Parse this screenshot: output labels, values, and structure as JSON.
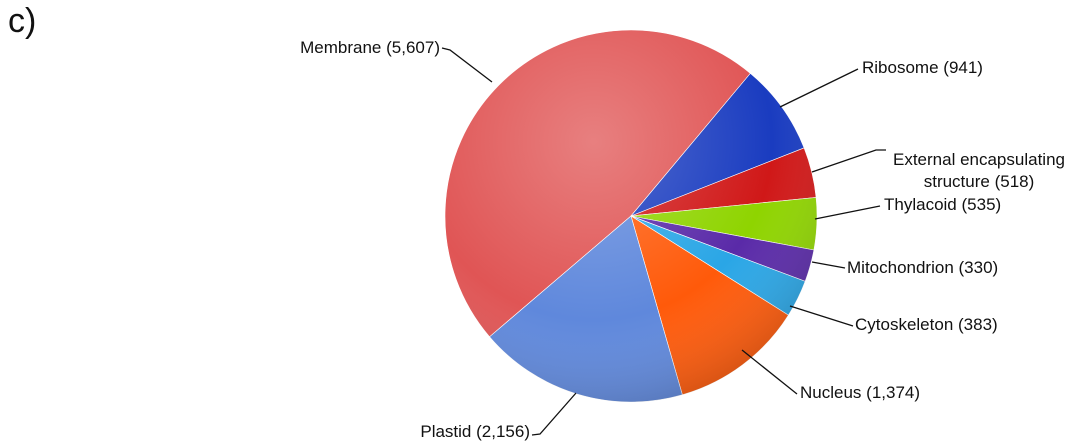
{
  "chart_data": {
    "type": "pie",
    "panel_label": "c)",
    "categories": [
      "Membrane",
      "Ribosome",
      "External encapsulating structure",
      "Thylacoid",
      "Mitochondrion",
      "Cytoskeleton",
      "Nucleus",
      "Plastid"
    ],
    "values": [
      5607,
      941,
      518,
      535,
      330,
      383,
      1374,
      2156
    ],
    "value_labels": [
      "(5,607)",
      "(941)",
      "(518)",
      "(535)",
      "(330)",
      "(383)",
      "(1,374)",
      "(2,156)"
    ],
    "colors": [
      "#e05555",
      "#1a3cc0",
      "#d01818",
      "#8fd400",
      "#5a2aa8",
      "#2aa6e6",
      "#ff5a0a",
      "#5f88dc"
    ]
  }
}
